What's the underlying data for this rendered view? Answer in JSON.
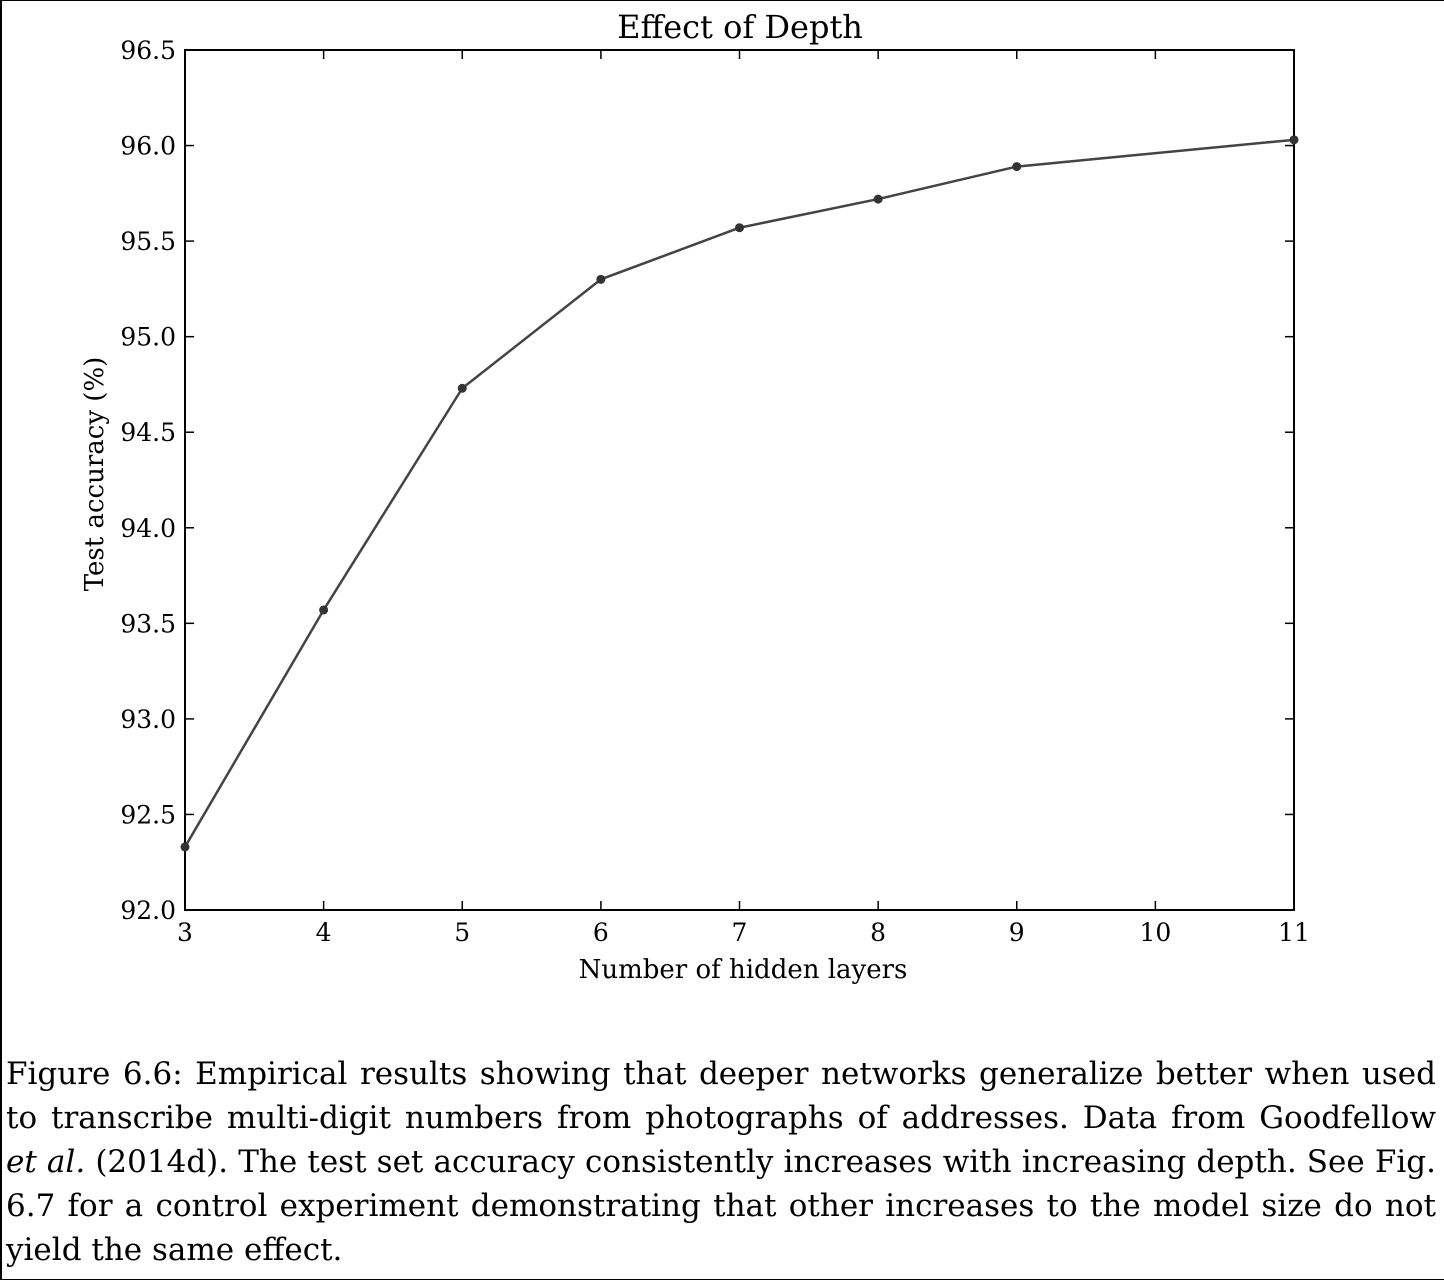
{
  "chart_data": {
    "type": "line",
    "title": "Effect of Depth",
    "xlabel": "Number of hidden layers",
    "ylabel": "Test accuracy (%)",
    "x": [
      3,
      4,
      5,
      6,
      7,
      8,
      9,
      11
    ],
    "series": [
      {
        "values": [
          92.33,
          93.57,
          94.73,
          95.3,
          95.57,
          95.72,
          95.89,
          96.03
        ]
      }
    ],
    "xlim": [
      3,
      11
    ],
    "ylim": [
      92.0,
      96.5
    ],
    "xticks": [
      3,
      4,
      5,
      6,
      7,
      8,
      9,
      10,
      11
    ],
    "xtick_labels": [
      "3",
      "4",
      "5",
      "6",
      "7",
      "8",
      "9",
      "10",
      "11"
    ],
    "yticks": [
      92.0,
      92.5,
      93.0,
      93.5,
      94.0,
      94.5,
      95.0,
      95.5,
      96.0,
      96.5
    ],
    "ytick_labels": [
      "92.0",
      "92.5",
      "93.0",
      "93.5",
      "94.0",
      "94.5",
      "95.0",
      "95.5",
      "96.0",
      "96.5"
    ],
    "grid": false,
    "line_color": "#444444"
  },
  "caption": {
    "part1": "Figure 6.6: Empirical results showing that deeper networks generalize better when used to transcribe multi-digit numbers from photographs of addresses. Data from Goodfellow ",
    "italic": "et al.",
    "part2": " (2014d). The test set accuracy consistently increases with increasing depth. See Fig. 6.7 for a control experiment demonstrating that other increases to the model size do not yield the same effect."
  }
}
